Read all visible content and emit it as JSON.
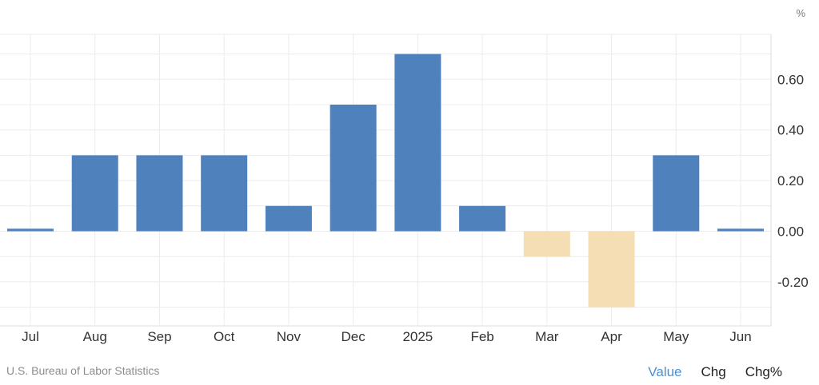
{
  "chart_data": {
    "type": "bar",
    "categories": [
      "Jul",
      "Aug",
      "Sep",
      "Oct",
      "Nov",
      "Dec",
      "2025",
      "Feb",
      "Mar",
      "Apr",
      "May",
      "Jun"
    ],
    "values": [
      0.01,
      0.3,
      0.3,
      0.3,
      0.1,
      0.5,
      0.7,
      0.1,
      -0.1,
      -0.3,
      0.3,
      0.01
    ],
    "unit": "%",
    "y_ticks": [
      "0.60",
      "0.40",
      "0.20",
      "0.00",
      "-0.20"
    ],
    "ylim": [
      -0.38,
      0.78
    ],
    "colors": {
      "positive": "#4f81bd",
      "negative": "#f5deb3",
      "grid": "#ececec"
    },
    "grid": true
  },
  "footer": {
    "source": "U.S. Bureau of Labor Statistics",
    "controls": [
      {
        "label": "Value",
        "active": true
      },
      {
        "label": "Chg",
        "active": false
      },
      {
        "label": "Chg%",
        "active": false
      }
    ]
  }
}
